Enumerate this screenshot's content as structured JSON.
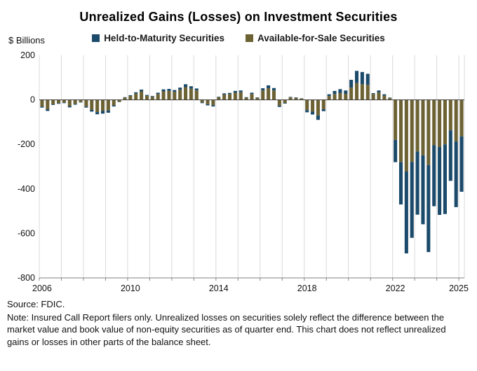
{
  "title": "Unrealized Gains (Losses) on Investment Securities",
  "y_axis_label": "$ Billions",
  "legend": [
    {
      "label": "Held-to-Maturity Securities",
      "color": "#1b4a6b"
    },
    {
      "label": "Available-for-Sale Securities",
      "color": "#6d6233"
    }
  ],
  "footer": {
    "source": "Source: FDIC.",
    "note": "Note: Insured Call Report filers only. Unrealized losses on securities solely reflect the difference between the market value and book value of non-equity securities as of quarter end. This chart does not reflect unrealized gains or losses in other parts of the balance sheet."
  },
  "chart_data": {
    "type": "bar",
    "stacked": true,
    "unit": "$ billions",
    "title": "Unrealized Gains (Losses) on Investment Securities",
    "xlabel": "",
    "ylabel": "$ Billions",
    "ylim": [
      -800,
      200
    ],
    "yticks": [
      200,
      0,
      -200,
      -400,
      -600,
      -800
    ],
    "xticks": [
      2006,
      2010,
      2014,
      2018,
      2022,
      2025
    ],
    "grid": "vertical",
    "legend_position": "top",
    "x": [
      "2006 Q1",
      "2006 Q2",
      "2006 Q3",
      "2006 Q4",
      "2007 Q1",
      "2007 Q2",
      "2007 Q3",
      "2007 Q4",
      "2008 Q1",
      "2008 Q2",
      "2008 Q3",
      "2008 Q4",
      "2009 Q1",
      "2009 Q2",
      "2009 Q3",
      "2009 Q4",
      "2010 Q1",
      "2010 Q2",
      "2010 Q3",
      "2010 Q4",
      "2011 Q1",
      "2011 Q2",
      "2011 Q3",
      "2011 Q4",
      "2012 Q1",
      "2012 Q2",
      "2012 Q3",
      "2012 Q4",
      "2013 Q1",
      "2013 Q2",
      "2013 Q3",
      "2013 Q4",
      "2014 Q1",
      "2014 Q2",
      "2014 Q3",
      "2014 Q4",
      "2015 Q1",
      "2015 Q2",
      "2015 Q3",
      "2015 Q4",
      "2016 Q1",
      "2016 Q2",
      "2016 Q3",
      "2016 Q4",
      "2017 Q1",
      "2017 Q2",
      "2017 Q3",
      "2017 Q4",
      "2018 Q1",
      "2018 Q2",
      "2018 Q3",
      "2018 Q4",
      "2019 Q1",
      "2019 Q2",
      "2019 Q3",
      "2019 Q4",
      "2020 Q1",
      "2020 Q2",
      "2020 Q3",
      "2020 Q4",
      "2021 Q1",
      "2021 Q2",
      "2021 Q3",
      "2021 Q4",
      "2022 Q1",
      "2022 Q2",
      "2022 Q3",
      "2022 Q4",
      "2023 Q1",
      "2023 Q2",
      "2023 Q3",
      "2023 Q4",
      "2024 Q1",
      "2024 Q2",
      "2024 Q3",
      "2024 Q4",
      "2025 Q1"
    ],
    "series": [
      {
        "name": "Held-to-Maturity Securities",
        "color": "#1b4a6b",
        "values": [
          -5,
          -8,
          -3,
          -3,
          -3,
          -6,
          -4,
          -2,
          -5,
          -8,
          -10,
          -12,
          -10,
          -5,
          -2,
          2,
          3,
          6,
          8,
          4,
          3,
          6,
          9,
          9,
          8,
          10,
          13,
          11,
          9,
          -3,
          -5,
          -6,
          2,
          5,
          5,
          8,
          8,
          2,
          6,
          2,
          10,
          13,
          11,
          -6,
          -3,
          2,
          2,
          1,
          -10,
          -13,
          -20,
          -9,
          8,
          14,
          18,
          15,
          35,
          55,
          55,
          50,
          4,
          9,
          6,
          2,
          -100,
          -190,
          -368,
          -341,
          -284,
          -310,
          -391,
          -274,
          -305,
          -313,
          -227,
          -295,
          -249
        ]
      },
      {
        "name": "Available-for-Sale Securities",
        "color": "#6d6233",
        "values": [
          -30,
          -42,
          -20,
          -15,
          -12,
          -28,
          -18,
          -10,
          -30,
          -45,
          -55,
          -50,
          -48,
          -25,
          -8,
          10,
          18,
          28,
          38,
          18,
          14,
          26,
          38,
          40,
          36,
          45,
          57,
          50,
          42,
          -12,
          -20,
          -24,
          12,
          24,
          26,
          32,
          34,
          10,
          26,
          9,
          42,
          52,
          42,
          -26,
          -14,
          11,
          9,
          6,
          -46,
          -53,
          -70,
          -42,
          17,
          26,
          30,
          27,
          55,
          75,
          70,
          67,
          26,
          33,
          19,
          8,
          -180,
          -280,
          -322,
          -279,
          -232,
          -249,
          -293,
          -204,
          -212,
          -200,
          -137,
          -187,
          -164
        ]
      }
    ]
  }
}
